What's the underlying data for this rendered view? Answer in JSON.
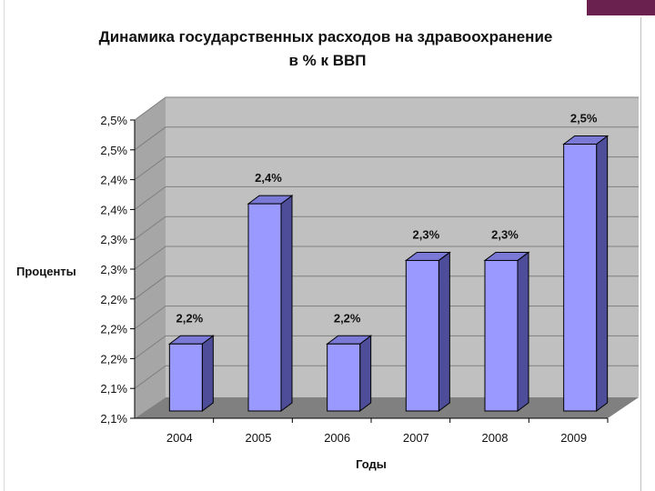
{
  "chart_data": {
    "type": "bar",
    "title": "Динамика государственных расходов на здравоохранение",
    "subtitle": "в % к ВВП",
    "xlabel": "Годы",
    "ylabel": "Проценты",
    "categories": [
      "2004",
      "2005",
      "2006",
      "2007",
      "2008",
      "2009"
    ],
    "values": [
      2.2,
      2.4,
      2.2,
      2.3,
      2.3,
      2.5
    ],
    "data_labels": [
      "2,2%",
      "2,4%",
      "2,2%",
      "2,3%",
      "2,3%",
      "2,5%"
    ],
    "bar_heights_true": [
      2.17,
      2.405,
      2.17,
      2.31,
      2.31,
      2.505
    ],
    "y_ticks": [
      "2,1%",
      "2,1%",
      "2,2%",
      "2,2%",
      "2,2%",
      "2,3%",
      "2,3%",
      "2,4%",
      "2,4%",
      "2,5%",
      "2,5%"
    ],
    "ylim": [
      2.05,
      2.55
    ],
    "grid": true,
    "legend": "none",
    "three_d": true,
    "colors": {
      "bar_front": "#9999ff",
      "bar_side": "#4d4d99",
      "bar_top": "#7a7ad6",
      "wall": "#c0c0c0",
      "floor": "#808080",
      "gridline": "#7f7f7f"
    }
  },
  "decor": {
    "accent_color": "#6b2150"
  }
}
